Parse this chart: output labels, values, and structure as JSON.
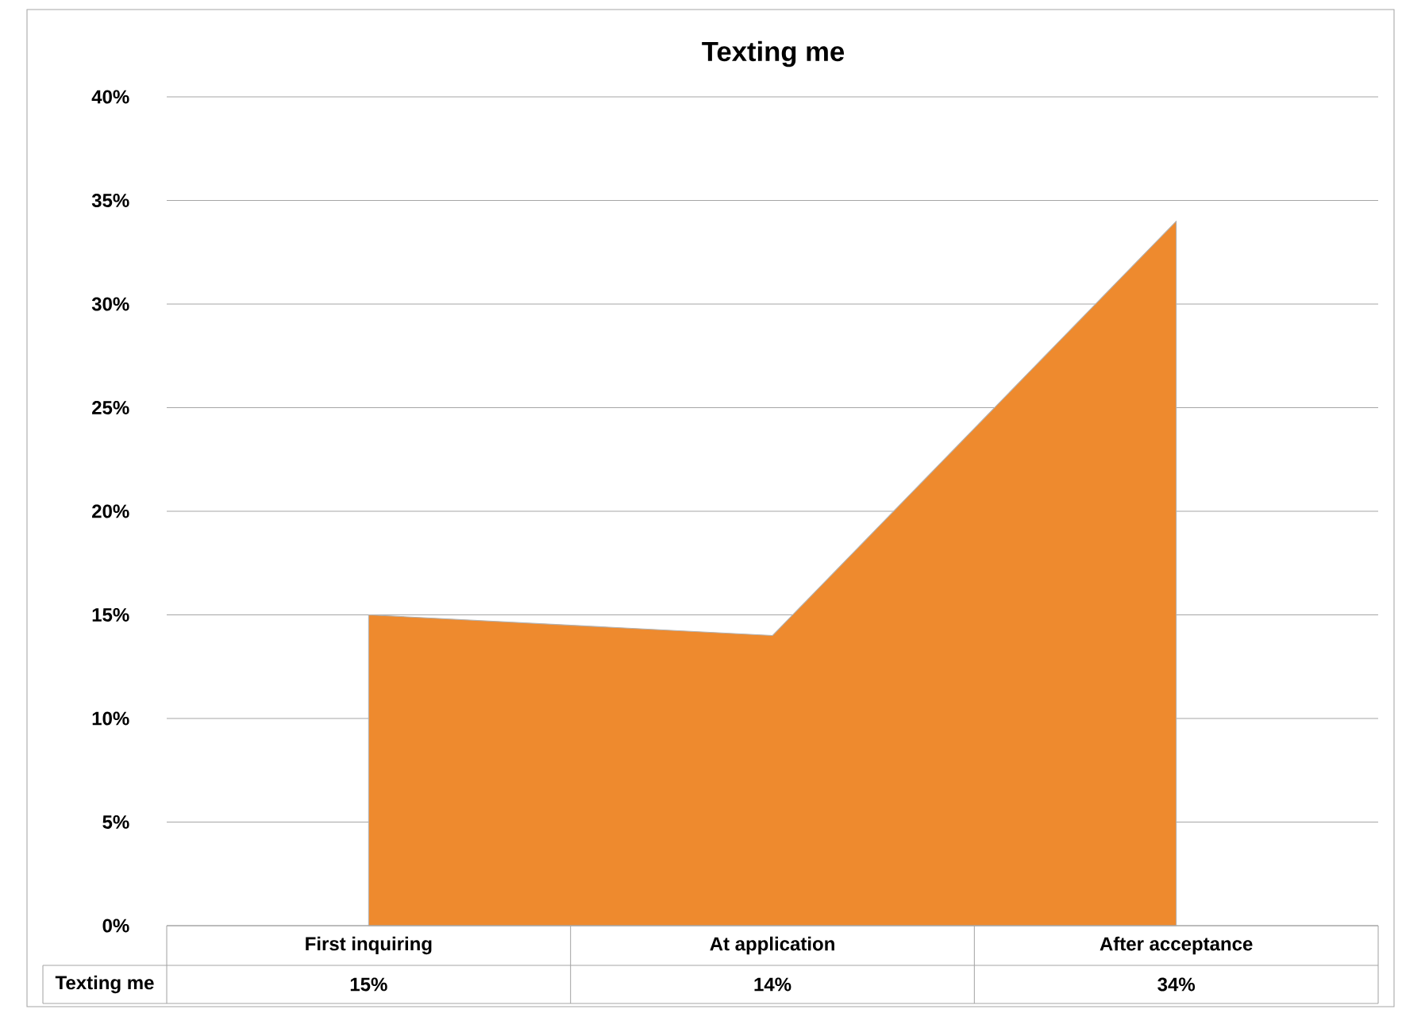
{
  "chart_data": {
    "type": "area",
    "title": "Texting me",
    "categories": [
      "First inquiring",
      "At application",
      "After acceptance"
    ],
    "series": [
      {
        "name": "Texting me",
        "color": "#ee8a2e",
        "values": [
          15,
          14,
          34
        ],
        "value_labels": [
          "15%",
          "14%",
          "34%"
        ]
      }
    ],
    "ylim": [
      0,
      40
    ],
    "yticks": [
      {
        "value": 0,
        "label": "0%"
      },
      {
        "value": 5,
        "label": "5%"
      },
      {
        "value": 10,
        "label": "10%"
      },
      {
        "value": 15,
        "label": "15%"
      },
      {
        "value": 20,
        "label": "20%"
      },
      {
        "value": 25,
        "label": "25%"
      },
      {
        "value": 30,
        "label": "30%"
      },
      {
        "value": 35,
        "label": "35%"
      },
      {
        "value": 40,
        "label": "40%"
      }
    ],
    "grid": "y"
  }
}
